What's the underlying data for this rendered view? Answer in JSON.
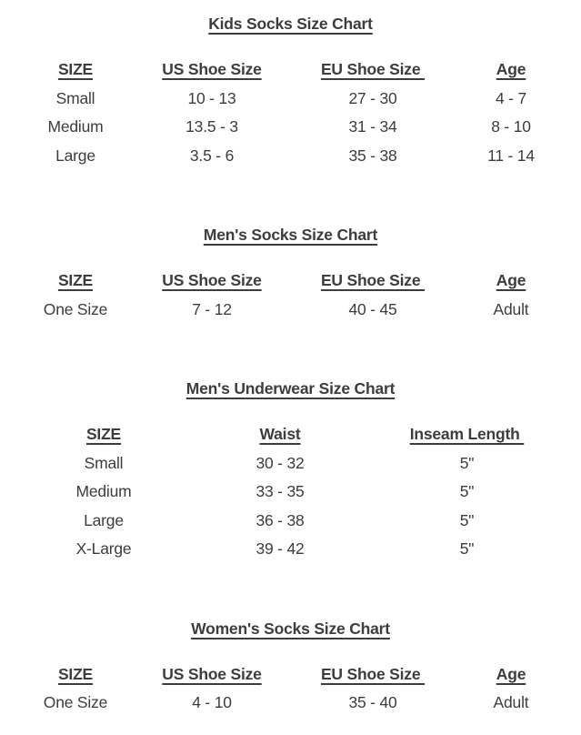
{
  "page": {
    "background": "#ffffff",
    "text_color": "#3d3d3d"
  },
  "charts": [
    {
      "title": "Kids Socks Size Chart",
      "columns": [
        "SIZE",
        "US Shoe Size",
        "EU Shoe Size ",
        "Age"
      ],
      "rows": [
        [
          "Small",
          "10 - 13",
          "27 - 30",
          "4 - 7"
        ],
        [
          "Medium",
          "13.5 - 3",
          "31 - 34",
          "8 - 10"
        ],
        [
          "Large",
          "3.5 - 6",
          "35 - 38",
          "11 - 14"
        ]
      ]
    },
    {
      "title": "Men's Socks Size Chart",
      "columns": [
        "SIZE",
        "US Shoe Size",
        "EU Shoe Size ",
        "Age"
      ],
      "rows": [
        [
          "One Size",
          "7 - 12",
          "40 - 45",
          "Adult"
        ]
      ]
    },
    {
      "title": "Men's Underwear Size Chart",
      "columns": [
        "SIZE",
        "Waist",
        "Inseam Length "
      ],
      "rows": [
        [
          "Small",
          "30 - 32",
          "5\""
        ],
        [
          "Medium",
          "33 - 35",
          "5\""
        ],
        [
          "Large",
          "36 - 38",
          "5\""
        ],
        [
          "X-Large",
          "39 - 42",
          "5\""
        ]
      ]
    },
    {
      "title": "Women's Socks Size Chart",
      "columns": [
        "SIZE",
        "US Shoe Size",
        "EU Shoe Size ",
        "Age"
      ],
      "rows": [
        [
          "One Size",
          "4 - 10",
          "35 - 40",
          "Adult"
        ]
      ]
    }
  ]
}
